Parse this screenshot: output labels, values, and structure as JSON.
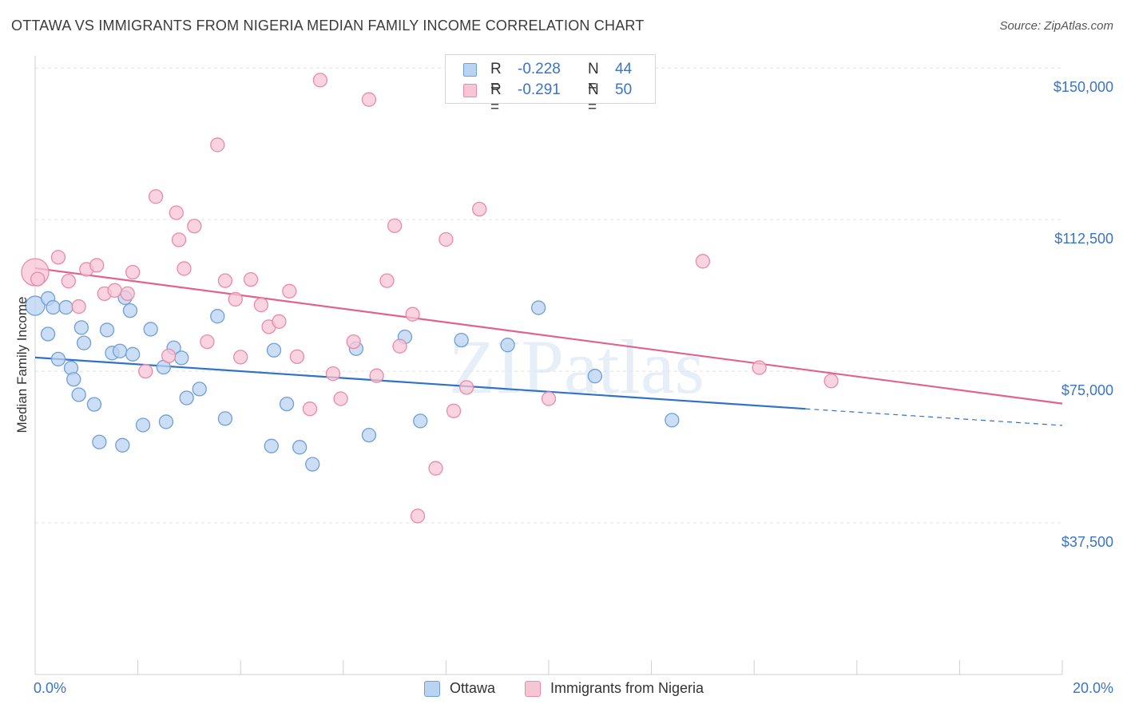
{
  "title": "OTTAWA VS IMMIGRANTS FROM NIGERIA MEDIAN FAMILY INCOME CORRELATION CHART",
  "source": "Source: ZipAtlas.com",
  "watermark": "ZIPatlas",
  "colors": {
    "ottawa_fill": "#b9d3f2",
    "ottawa_stroke": "#6f9fd8",
    "ottawa_line": "#2f72c8",
    "nigeria_fill": "#f7c6d5",
    "nigeria_stroke": "#e98aa9",
    "nigeria_line": "#e0628e",
    "tick_text": "#3a74c8",
    "grid": "#e3e3e3"
  },
  "legend": {
    "rows": [
      {
        "r_label": "R =",
        "r_value": "-0.228",
        "n_label": "N =",
        "n_value": "44"
      },
      {
        "r_label": "R =",
        "r_value": "-0.291",
        "n_label": "N =",
        "n_value": "50"
      }
    ]
  },
  "chart_data": {
    "type": "scatter",
    "xlabel": "",
    "ylabel": "Median Family Income",
    "xlim": [
      0,
      20
    ],
    "ylim": [
      0,
      153000
    ],
    "x_tick_labels": [
      "0.0%",
      "20.0%"
    ],
    "y_ticks": [
      37500,
      75000,
      112500,
      150000
    ],
    "y_tick_labels": [
      "$37,500",
      "$75,000",
      "$112,500",
      "$150,000"
    ],
    "grid": true,
    "legend_position": "top-center",
    "series": [
      {
        "name": "Ottawa",
        "trend": {
          "x0": 0.0,
          "y0": 78400,
          "x1": 15.0,
          "y1": 65700,
          "dashed_to_x": 20.0,
          "dashed_to_y": 61600
        },
        "points": [
          [
            0.0,
            91200
          ],
          [
            0.25,
            93000
          ],
          [
            0.25,
            84200
          ],
          [
            0.35,
            90800
          ],
          [
            0.45,
            78000
          ],
          [
            0.6,
            90800
          ],
          [
            0.7,
            75800
          ],
          [
            0.75,
            73000
          ],
          [
            0.85,
            69200
          ],
          [
            0.9,
            85800
          ],
          [
            0.95,
            82000
          ],
          [
            1.15,
            66800
          ],
          [
            1.25,
            57500
          ],
          [
            1.4,
            85200
          ],
          [
            1.5,
            79500
          ],
          [
            1.65,
            80000
          ],
          [
            1.7,
            56700
          ],
          [
            1.75,
            93200
          ],
          [
            1.85,
            90000
          ],
          [
            1.9,
            79200
          ],
          [
            2.1,
            61700
          ],
          [
            2.25,
            85400
          ],
          [
            2.5,
            76000
          ],
          [
            2.55,
            62500
          ],
          [
            2.7,
            80800
          ],
          [
            2.85,
            78300
          ],
          [
            2.95,
            68400
          ],
          [
            3.2,
            70600
          ],
          [
            3.55,
            88600
          ],
          [
            3.7,
            63300
          ],
          [
            4.6,
            56500
          ],
          [
            4.65,
            80200
          ],
          [
            4.9,
            66900
          ],
          [
            5.15,
            56200
          ],
          [
            5.4,
            52000
          ],
          [
            6.25,
            80600
          ],
          [
            6.5,
            59200
          ],
          [
            7.2,
            83500
          ],
          [
            7.5,
            62700
          ],
          [
            8.3,
            82700
          ],
          [
            9.2,
            81500
          ],
          [
            9.8,
            90700
          ],
          [
            10.9,
            73800
          ],
          [
            12.4,
            62900
          ]
        ]
      },
      {
        "name": "Immigrants from Nigeria",
        "trend": {
          "x0": 0.0,
          "y0": 100500,
          "x1": 20.0,
          "y1": 67000
        },
        "points": [
          [
            0.0,
            99500
          ],
          [
            0.05,
            97800
          ],
          [
            0.45,
            103200
          ],
          [
            0.65,
            97300
          ],
          [
            0.85,
            91000
          ],
          [
            1.0,
            100200
          ],
          [
            1.2,
            101200
          ],
          [
            1.35,
            94200
          ],
          [
            1.55,
            95000
          ],
          [
            1.8,
            94200
          ],
          [
            1.9,
            99500
          ],
          [
            2.15,
            75000
          ],
          [
            2.35,
            118200
          ],
          [
            2.6,
            78800
          ],
          [
            2.75,
            114200
          ],
          [
            2.8,
            107500
          ],
          [
            2.9,
            100400
          ],
          [
            3.1,
            110900
          ],
          [
            3.35,
            82300
          ],
          [
            3.55,
            131000
          ],
          [
            3.7,
            97400
          ],
          [
            3.9,
            92800
          ],
          [
            4.0,
            78500
          ],
          [
            4.2,
            97700
          ],
          [
            4.4,
            91400
          ],
          [
            4.55,
            86000
          ],
          [
            4.75,
            87300
          ],
          [
            4.95,
            94800
          ],
          [
            5.1,
            78600
          ],
          [
            5.35,
            65700
          ],
          [
            5.55,
            147000
          ],
          [
            5.8,
            74400
          ],
          [
            5.95,
            68200
          ],
          [
            6.2,
            82300
          ],
          [
            6.5,
            142200
          ],
          [
            6.65,
            73900
          ],
          [
            6.85,
            97400
          ],
          [
            7.0,
            111000
          ],
          [
            7.1,
            81200
          ],
          [
            7.35,
            89100
          ],
          [
            7.45,
            39200
          ],
          [
            7.8,
            51000
          ],
          [
            8.0,
            107600
          ],
          [
            8.15,
            65200
          ],
          [
            8.4,
            71000
          ],
          [
            8.65,
            115100
          ],
          [
            10.0,
            68200
          ],
          [
            13.0,
            102200
          ],
          [
            14.1,
            75900
          ],
          [
            15.5,
            72600
          ]
        ]
      }
    ]
  }
}
